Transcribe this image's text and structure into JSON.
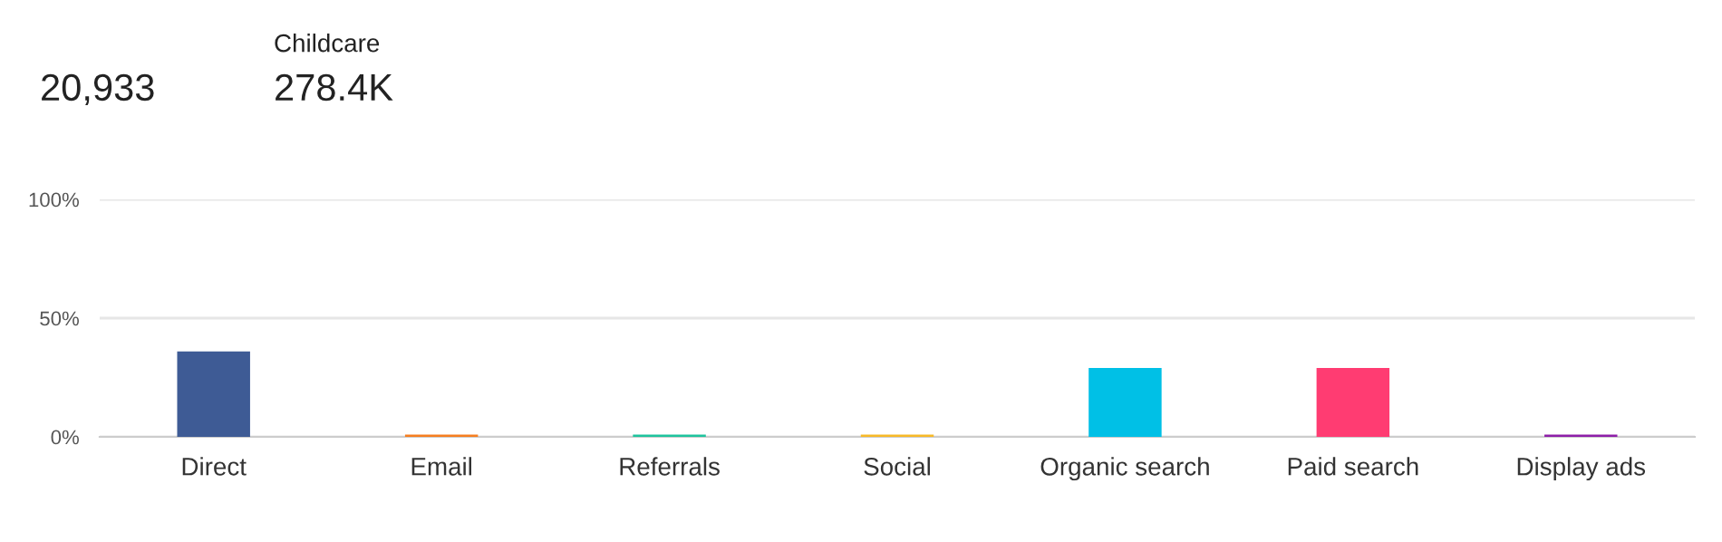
{
  "chart_data": {
    "type": "bar",
    "categories": [
      "Direct",
      "Email",
      "Referrals",
      "Social",
      "Organic search",
      "Paid search",
      "Display ads"
    ],
    "values": [
      36,
      1,
      1,
      1,
      29,
      29,
      1
    ],
    "colors": [
      "#3e5b95",
      "#f57e20",
      "#1fc39d",
      "#f7b928",
      "#00c0e6",
      "#ff3c72",
      "#8e1fa8"
    ],
    "ylim": [
      0,
      100
    ],
    "yticks": [
      {
        "value": 0,
        "label": "0%"
      },
      {
        "value": 50,
        "label": "50%"
      },
      {
        "value": 100,
        "label": "100%"
      }
    ],
    "grid": "y",
    "annotations": [
      "20,933",
      "Childcare",
      "278.4K"
    ]
  }
}
